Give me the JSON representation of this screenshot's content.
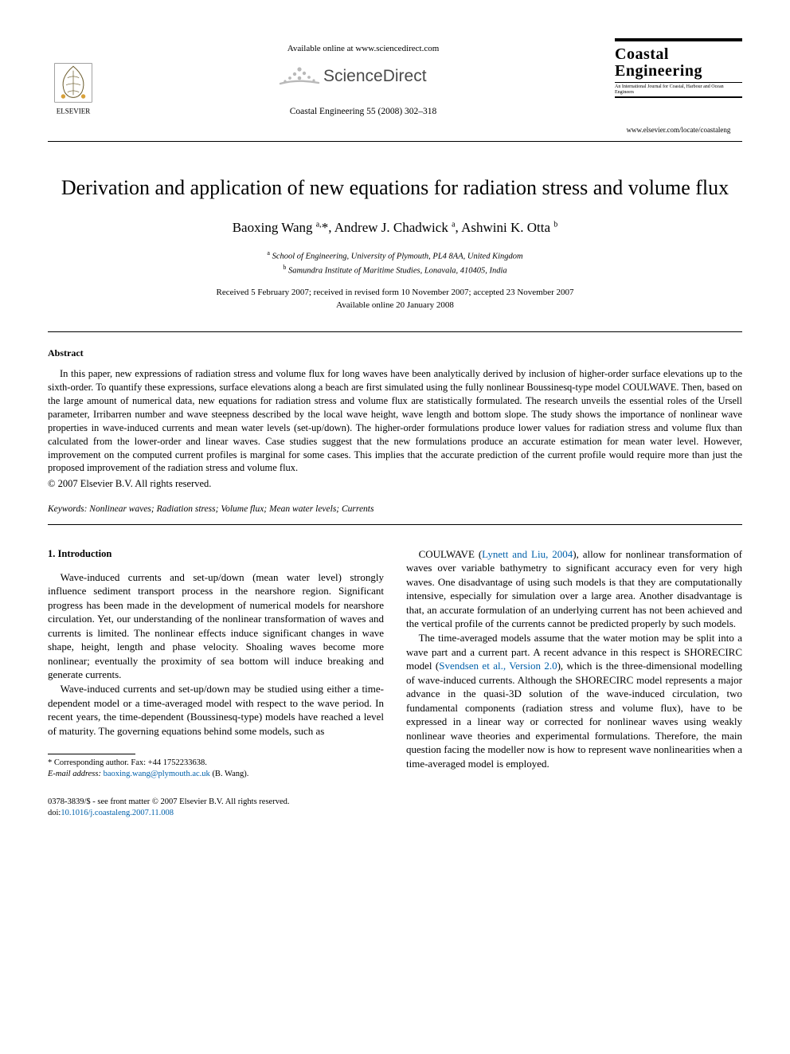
{
  "header": {
    "publisher_name": "ELSEVIER",
    "available_online": "Available online at www.sciencedirect.com",
    "sciencedirect_label": "ScienceDirect",
    "journal_ref": "Coastal Engineering 55 (2008) 302–318",
    "journal_box": {
      "title_line1": "Coastal",
      "title_line2": "Engineering",
      "subtitle": "An International Journal for Coastal, Harbour and Ocean Engineers"
    },
    "journal_url": "www.elsevier.com/locate/coastaleng"
  },
  "article": {
    "title": "Derivation and application of new equations for radiation stress and volume flux",
    "authors_html": "Baoxing Wang <sup>a,</sup>*, Andrew J. Chadwick <sup>a</sup>, Ashwini K. Otta <sup>b</sup>",
    "affiliations": [
      {
        "marker": "a",
        "text": "School of Engineering, University of Plymouth, PL4 8AA, United Kingdom"
      },
      {
        "marker": "b",
        "text": "Samundra Institute of Maritime Studies, Lonavala, 410405, India"
      }
    ],
    "history_line1": "Received 5 February 2007; received in revised form 10 November 2007; accepted 23 November 2007",
    "history_line2": "Available online 20 January 2008"
  },
  "abstract": {
    "heading": "Abstract",
    "text": "In this paper, new expressions of radiation stress and volume flux for long waves have been analytically derived by inclusion of higher-order surface elevations up to the sixth-order. To quantify these expressions, surface elevations along a beach are first simulated using the fully nonlinear Boussinesq-type model COULWAVE. Then, based on the large amount of numerical data, new equations for radiation stress and volume flux are statistically formulated. The research unveils the essential roles of the Ursell parameter, Irribarren number and wave steepness described by the local wave height, wave length and bottom slope. The study shows the importance of nonlinear wave properties in wave-induced currents and mean water levels (set-up/down). The higher-order formulations produce lower values for radiation stress and volume flux than calculated from the lower-order and linear waves. Case studies suggest that the new formulations produce an accurate estimation for mean water level. However, improvement on the computed current profiles is marginal for some cases. This implies that the accurate prediction of the current profile would require more than just the proposed improvement of the radiation stress and volume flux.",
    "copyright": "© 2007 Elsevier B.V. All rights reserved."
  },
  "keywords": {
    "label": "Keywords:",
    "list": "Nonlinear waves; Radiation stress; Volume flux; Mean water levels; Currents"
  },
  "body": {
    "section_number": "1.",
    "section_title": "Introduction",
    "left_paras": [
      "Wave-induced currents and set-up/down (mean water level) strongly influence sediment transport process in the nearshore region. Significant progress has been made in the development of numerical models for nearshore circulation. Yet, our understanding of the nonlinear transformation of waves and currents is limited. The nonlinear effects induce significant changes in wave shape, height, length and phase velocity. Shoaling waves become more nonlinear; eventually the proximity of sea bottom will induce breaking and generate currents.",
      "Wave-induced currents and set-up/down may be studied using either a time-dependent model or a time-averaged model with respect to the wave period. In recent years, the time-dependent (Boussinesq-type) models have reached a level of maturity. The governing equations behind some models, such as"
    ],
    "right_paras": [
      "COULWAVE (Lynett and Liu, 2004), allow for nonlinear transformation of waves over variable bathymetry to significant accuracy even for very high waves. One disadvantage of using such models is that they are computationally intensive, especially for simulation over a large area. Another disadvantage is that, an accurate formulation of an underlying current has not been achieved and the vertical profile of the currents cannot be predicted properly by such models.",
      "The time-averaged models assume that the water motion may be split into a wave part and a current part. A recent advance in this respect is SHORECIRC model (Svendsen et al., Version 2.0), which is the three-dimensional modelling of wave-induced currents. Although the SHORECIRC model represents a major advance in the quasi-3D solution of the wave-induced circulation, two fundamental components (radiation stress and volume flux), have to be expressed in a linear way or corrected for nonlinear waves using weakly nonlinear wave theories and experimental formulations. Therefore, the main question facing the modeller now is how to represent wave nonlinearities when a time-averaged model is employed."
    ],
    "citation_links": {
      "lynett": "Lynett and Liu, 2004",
      "svendsen": "Svendsen et al., Version 2.0"
    }
  },
  "footnotes": {
    "corresponding": "* Corresponding author. Fax: +44 1752233638.",
    "email_label": "E-mail address:",
    "email": "baoxing.wang@plymouth.ac.uk",
    "email_who": "(B. Wang)."
  },
  "footer": {
    "line1": "0378-3839/$ - see front matter © 2007 Elsevier B.V. All rights reserved.",
    "doi_label": "doi:",
    "doi": "10.1016/j.coastaleng.2007.11.008"
  },
  "colors": {
    "link": "#0060aa",
    "sd_swoosh": "#b9b9b9",
    "sd_text": "#4a4a4a",
    "elsevier_orange": "#e67817",
    "elsevier_gold": "#d8a13a"
  }
}
